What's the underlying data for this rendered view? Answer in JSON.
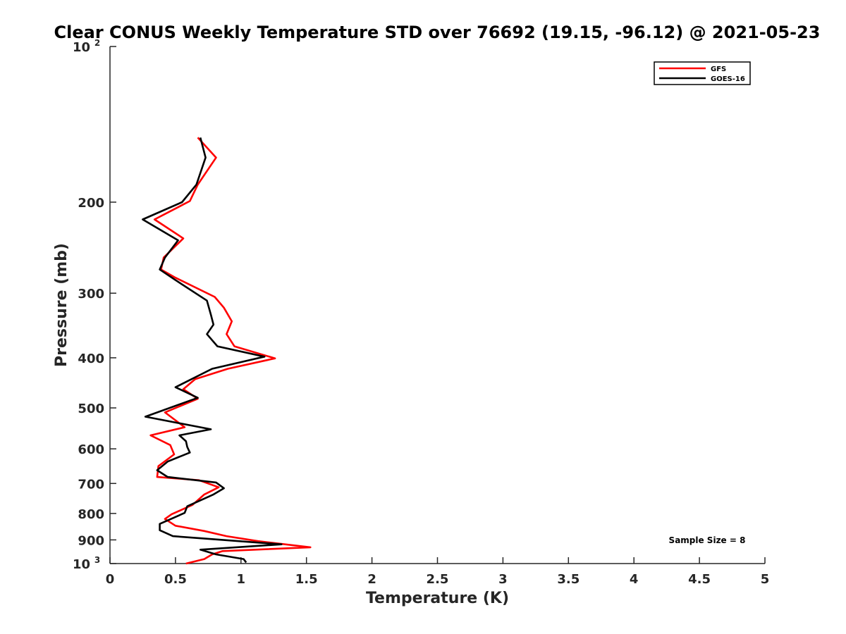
{
  "chart_data": {
    "type": "line",
    "title": "Clear CONUS Weekly Temperature STD over 76692 (19.15, -96.12) @ 2021-05-23",
    "xlabel": "Temperature (K)",
    "ylabel": "Pressure (mb)",
    "xlim": [
      0,
      5
    ],
    "ylim": [
      100,
      1000
    ],
    "y_scale": "log",
    "y_reversed": true,
    "xticks": [
      0,
      0.5,
      1,
      1.5,
      2,
      2.5,
      3,
      3.5,
      4,
      4.5,
      5
    ],
    "xtick_labels": [
      "0",
      "0.5",
      "1",
      "1.5",
      "2",
      "2.5",
      "3",
      "3.5",
      "4",
      "4.5",
      "5"
    ],
    "yticks": [
      {
        "value": 100,
        "label": "10",
        "sup": "2"
      },
      {
        "value": 200,
        "label": "200",
        "sup": ""
      },
      {
        "value": 300,
        "label": "300",
        "sup": ""
      },
      {
        "value": 400,
        "label": "400",
        "sup": ""
      },
      {
        "value": 500,
        "label": "500",
        "sup": ""
      },
      {
        "value": 600,
        "label": "600",
        "sup": ""
      },
      {
        "value": 700,
        "label": "700",
        "sup": ""
      },
      {
        "value": 800,
        "label": "800",
        "sup": ""
      },
      {
        "value": 900,
        "label": "900",
        "sup": ""
      },
      {
        "value": 1000,
        "label": "10",
        "sup": "3"
      }
    ],
    "grid": false,
    "legend_position": "top-right",
    "series": [
      {
        "name": "GFS",
        "color": "#ff0000",
        "points": [
          [
            0.67,
            150
          ],
          [
            0.81,
            164
          ],
          [
            0.67,
            185
          ],
          [
            0.61,
            199
          ],
          [
            0.34,
            216
          ],
          [
            0.56,
            235
          ],
          [
            0.41,
            256
          ],
          [
            0.39,
            270
          ],
          [
            0.5,
            280
          ],
          [
            0.8,
            305
          ],
          [
            0.87,
            320
          ],
          [
            0.93,
            340
          ],
          [
            0.89,
            360
          ],
          [
            0.95,
            380
          ],
          [
            1.26,
            401
          ],
          [
            0.9,
            420
          ],
          [
            0.65,
            440
          ],
          [
            0.56,
            460
          ],
          [
            0.67,
            480
          ],
          [
            0.42,
            510
          ],
          [
            0.57,
            545
          ],
          [
            0.31,
            565
          ],
          [
            0.46,
            590
          ],
          [
            0.49,
            615
          ],
          [
            0.37,
            648
          ],
          [
            0.36,
            680
          ],
          [
            0.68,
            690
          ],
          [
            0.83,
            712
          ],
          [
            0.72,
            735
          ],
          [
            0.63,
            770
          ],
          [
            0.47,
            803
          ],
          [
            0.42,
            820
          ],
          [
            0.5,
            845
          ],
          [
            0.72,
            865
          ],
          [
            0.89,
            885
          ],
          [
            1.13,
            905
          ],
          [
            1.53,
            930
          ],
          [
            0.86,
            946
          ],
          [
            0.78,
            960
          ],
          [
            0.72,
            980
          ],
          [
            0.58,
            1000
          ]
        ]
      },
      {
        "name": "GOES-16",
        "color": "#000000",
        "points": [
          [
            0.69,
            150
          ],
          [
            0.73,
            164
          ],
          [
            0.66,
            185
          ],
          [
            0.55,
            200
          ],
          [
            0.25,
            216
          ],
          [
            0.52,
            237
          ],
          [
            0.42,
            256
          ],
          [
            0.38,
            270
          ],
          [
            0.5,
            283
          ],
          [
            0.74,
            310
          ],
          [
            0.77,
            330
          ],
          [
            0.79,
            345
          ],
          [
            0.74,
            360
          ],
          [
            0.82,
            380
          ],
          [
            1.18,
            398
          ],
          [
            0.78,
            420
          ],
          [
            0.5,
            456
          ],
          [
            0.67,
            478
          ],
          [
            0.27,
            520
          ],
          [
            0.77,
            550
          ],
          [
            0.53,
            565
          ],
          [
            0.58,
            580
          ],
          [
            0.59,
            595
          ],
          [
            0.61,
            610
          ],
          [
            0.44,
            635
          ],
          [
            0.36,
            660
          ],
          [
            0.44,
            680
          ],
          [
            0.81,
            697
          ],
          [
            0.87,
            715
          ],
          [
            0.79,
            735
          ],
          [
            0.59,
            775
          ],
          [
            0.57,
            798
          ],
          [
            0.38,
            838
          ],
          [
            0.38,
            862
          ],
          [
            0.48,
            885
          ],
          [
            1.31,
            918
          ],
          [
            0.69,
            940
          ],
          [
            0.81,
            960
          ],
          [
            1.02,
            980
          ],
          [
            1.04,
            995
          ]
        ]
      }
    ],
    "annotations": [
      "Sample Size = 8"
    ]
  }
}
